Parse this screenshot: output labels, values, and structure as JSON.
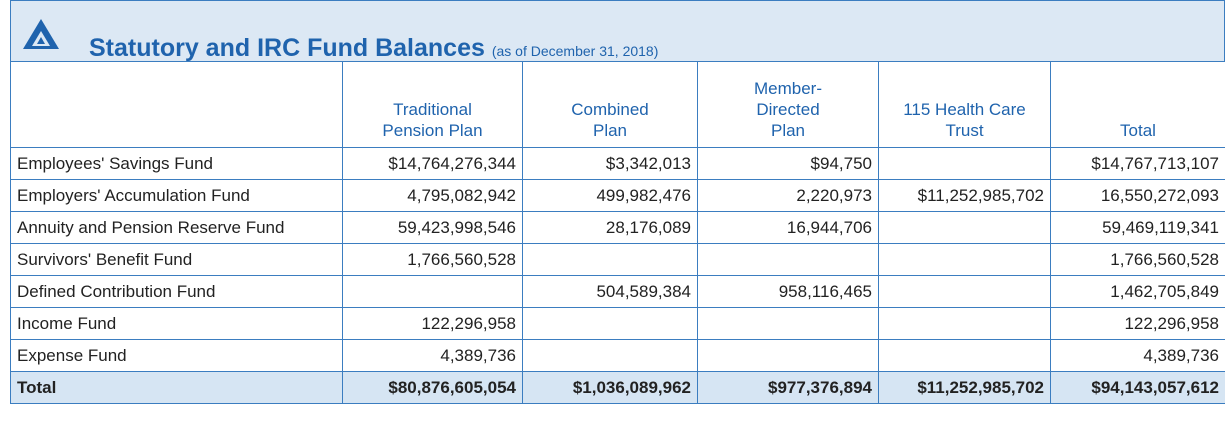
{
  "header": {
    "title": "Statutory and IRC Fund Balances",
    "subtitle": "(as of December 31, 2018)"
  },
  "table": {
    "columns": [
      "Traditional\nPension Plan",
      "Combined\nPlan",
      "Member-\nDirected\nPlan",
      "115 Health Care\nTrust",
      "Total"
    ],
    "rows": [
      {
        "label": "Employees' Savings Fund",
        "values": [
          "$14,764,276,344",
          "$3,342,013",
          "$94,750",
          null,
          "$14,767,713,107"
        ]
      },
      {
        "label": "Employers' Accumulation Fund",
        "values": [
          "4,795,082,942",
          "499,982,476",
          "2,220,973",
          "$11,252,985,702",
          "16,550,272,093"
        ]
      },
      {
        "label": "Annuity and Pension Reserve Fund",
        "values": [
          "59,423,998,546",
          "28,176,089",
          "16,944,706",
          null,
          "59,469,119,341"
        ]
      },
      {
        "label": "Survivors' Benefit Fund",
        "values": [
          "1,766,560,528",
          null,
          null,
          null,
          "1,766,560,528"
        ]
      },
      {
        "label": "Defined Contribution Fund",
        "values": [
          null,
          "504,589,384",
          "958,116,465",
          null,
          "1,462,705,849"
        ]
      },
      {
        "label": "Income Fund",
        "values": [
          "122,296,958",
          null,
          null,
          null,
          "122,296,958"
        ]
      },
      {
        "label": "Expense Fund",
        "values": [
          "4,389,736",
          null,
          null,
          null,
          "4,389,736"
        ]
      }
    ],
    "total": {
      "label": "Total",
      "values": [
        "$80,876,605,054",
        "$1,036,089,962",
        "$977,376,894",
        "$11,252,985,702",
        "$94,143,057,612"
      ]
    }
  }
}
